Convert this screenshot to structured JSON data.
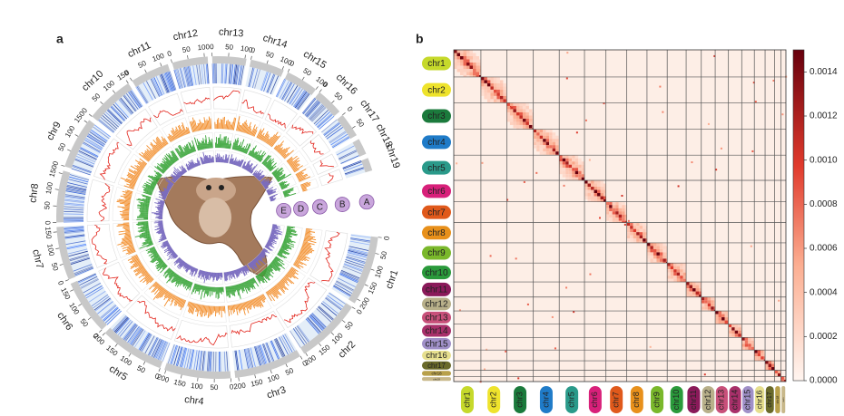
{
  "panel_labels": [
    "a",
    "b"
  ],
  "tracks": [
    "A",
    "B",
    "C",
    "D",
    "E"
  ],
  "chromosomes": [
    {
      "name": "chr1",
      "length": 215,
      "color": "#c6d92b",
      "ticks": [
        0,
        50,
        100,
        150,
        200
      ]
    },
    {
      "name": "chr2",
      "length": 205,
      "color": "#eee32c",
      "ticks": [
        0,
        50,
        100,
        150,
        200
      ]
    },
    {
      "name": "chr3",
      "length": 210,
      "color": "#1b7a3c",
      "ticks": [
        0,
        50,
        100,
        150,
        200
      ]
    },
    {
      "name": "chr4",
      "length": 205,
      "color": "#1f7bc8",
      "ticks": [
        0,
        50,
        100,
        150,
        200
      ]
    },
    {
      "name": "chr5",
      "length": 200,
      "color": "#2a9a8a",
      "ticks": [
        0,
        50,
        100,
        150,
        200
      ]
    },
    {
      "name": "chr6",
      "length": 170,
      "color": "#d8207a",
      "ticks": [
        0,
        50,
        100,
        150
      ]
    },
    {
      "name": "chr7",
      "length": 165,
      "color": "#e0591b",
      "ticks": [
        0,
        50,
        100,
        150
      ]
    },
    {
      "name": "chr8",
      "length": 160,
      "color": "#e8901b",
      "ticks": [
        0,
        50,
        100,
        150
      ]
    },
    {
      "name": "chr9",
      "length": 160,
      "color": "#7ab82b",
      "ticks": [
        0,
        50,
        100,
        150
      ]
    },
    {
      "name": "chr10",
      "length": 150,
      "color": "#2a9a3b",
      "ticks": [
        0,
        50,
        100,
        150
      ]
    },
    {
      "name": "chr11",
      "length": 120,
      "color": "#8a1a5a",
      "ticks": [
        0,
        50,
        100
      ]
    },
    {
      "name": "chr12",
      "length": 110,
      "color": "#b8b08a",
      "ticks": [
        0,
        50,
        100
      ]
    },
    {
      "name": "chr13",
      "length": 105,
      "color": "#c8507a",
      "ticks": [
        0,
        50,
        100
      ]
    },
    {
      "name": "chr14",
      "length": 105,
      "color": "#a8306a",
      "ticks": [
        0,
        50,
        100
      ]
    },
    {
      "name": "chr15",
      "length": 100,
      "color": "#a090c8",
      "ticks": [
        0,
        50,
        100
      ]
    },
    {
      "name": "chr16",
      "length": 85,
      "color": "#e6df8e",
      "ticks": [
        0,
        50
      ]
    },
    {
      "name": "chr17",
      "length": 75,
      "color": "#6a6a2a",
      "ticks": [
        0,
        50
      ]
    },
    {
      "name": "chr18",
      "length": 50,
      "color": "#b8a04a",
      "ticks": []
    },
    {
      "name": "chr19",
      "length": 40,
      "color": "#c8b88a",
      "ticks": []
    }
  ],
  "colorbar": {
    "lim": [
      0,
      0.0015
    ],
    "ticks": [
      {
        "value": 0,
        "label": "0.0000"
      },
      {
        "value": 0.0002,
        "label": "0.0002"
      },
      {
        "value": 0.0004,
        "label": "0.0004"
      },
      {
        "value": 0.0006,
        "label": "0.0006"
      },
      {
        "value": 0.0008,
        "label": "0.0008"
      },
      {
        "value": 0.001,
        "label": "0.0010"
      },
      {
        "value": 0.0012,
        "label": "0.0012"
      },
      {
        "value": 0.0014,
        "label": "0.0014"
      }
    ]
  }
}
